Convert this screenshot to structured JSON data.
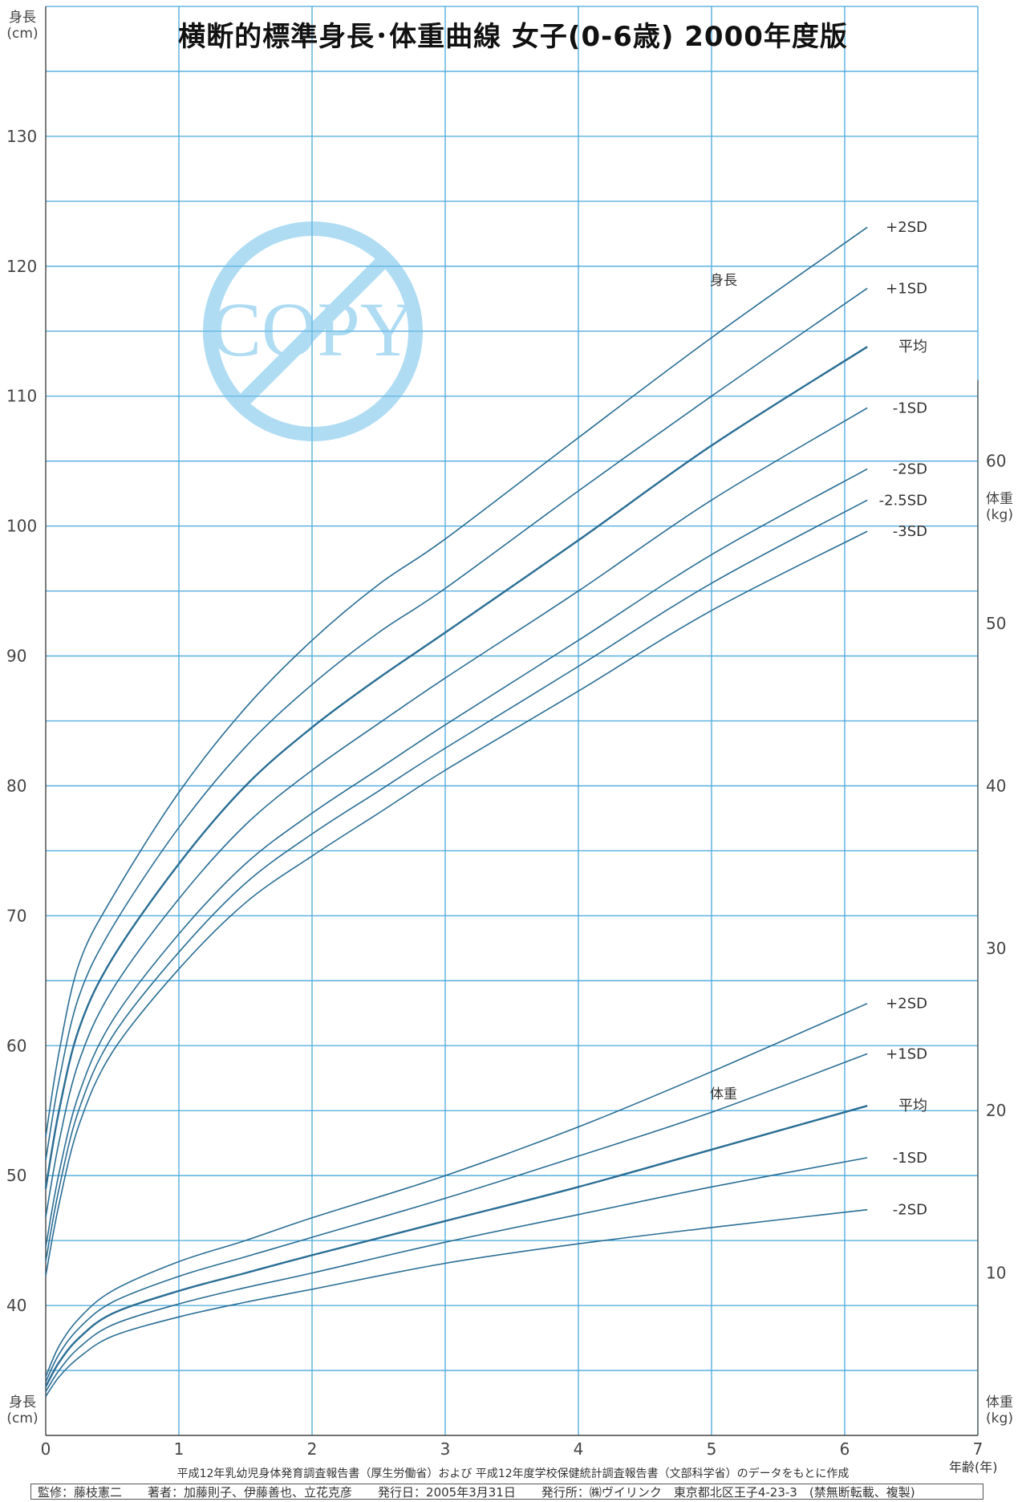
{
  "title": "横断的標準身長･体重曲線 女子(0-6歳) 2000年度版",
  "left_unit": {
    "name": "身長",
    "unit": "(cm)"
  },
  "left_unit_bottom": {
    "name": "身長",
    "unit": "(cm)"
  },
  "right_unit": {
    "name": "体重",
    "unit": "(kg)"
  },
  "right_unit_bottom": {
    "name": "体重",
    "unit": "(kg)"
  },
  "x_axis_label": "年齢(年)",
  "source_note": "平成12年乳幼児身体発育調査報告書（厚生労働省）および 平成12年度学校保健統計調査報告書（文部科学省）のデータをもとに作成",
  "footer": {
    "supervisor": "監修：藤枝憲二",
    "authors": "著者：加藤則子、伊藤善也、立花克彦",
    "date": "発行日：2005年3月31日",
    "publisher": "発行所：㈱ヴイリンク　東京都北区王子4-23-3　(禁無断転載、複製)"
  },
  "watermark": "COPY",
  "colors": {
    "grid": "#4aa8dc",
    "curve": "#2a6d94",
    "axis": "#444444",
    "watermark": "#6fc1ea"
  },
  "chart_data": {
    "type": "line",
    "grid": true,
    "x": {
      "min": 0,
      "max": 7,
      "ticks": [
        0,
        1,
        2,
        3,
        4,
        5,
        6,
        7
      ],
      "label": "年齢(年)"
    },
    "y_left": {
      "min": 30,
      "max": 140,
      "ticks": [
        40,
        50,
        60,
        70,
        80,
        90,
        100,
        110,
        120,
        130
      ],
      "label": "身長 (cm)"
    },
    "y_right": {
      "min": 0,
      "max": 80,
      "ticks": [
        10,
        20,
        30,
        40,
        50,
        60
      ],
      "label": "体重 (kg)"
    },
    "groups": [
      {
        "label": "身長",
        "axis": "left",
        "x": [
          0,
          0.1,
          0.25,
          0.5,
          1,
          1.5,
          2,
          2.5,
          3,
          4,
          5,
          6.17
        ],
        "series": [
          {
            "name": "+2SD",
            "values": [
              53.0,
              59.5,
              66.3,
              71.4,
              79.5,
              86.0,
              91.2,
              95.5,
              99.0,
              106.8,
              114.5,
              123.0
            ]
          },
          {
            "name": "+1SD",
            "values": [
              51.2,
              57.3,
              63.8,
              69.1,
              76.8,
              83.0,
              87.8,
              91.8,
              95.2,
              102.7,
              110.0,
              118.3
            ]
          },
          {
            "name": "平均",
            "values": [
              49.0,
              55.0,
              61.3,
              66.7,
              74.0,
              80.0,
              84.5,
              88.3,
              91.8,
              98.9,
              106.2,
              113.8
            ]
          },
          {
            "name": "-1SD",
            "values": [
              46.8,
              52.6,
              58.8,
              64.3,
              71.3,
              77.0,
              81.2,
              84.8,
              88.3,
              95.0,
              102.0,
              109.1
            ]
          },
          {
            "name": "-2SD",
            "values": [
              44.5,
              50.2,
              56.3,
              61.9,
              68.6,
              74.0,
              77.9,
              81.3,
              84.7,
              91.2,
              97.8,
              104.4
            ]
          },
          {
            "name": "-2.5SD",
            "values": [
              43.4,
              49.0,
              55.1,
              60.7,
              67.2,
              72.5,
              76.3,
              79.6,
              82.9,
              89.2,
              95.6,
              102.0
            ]
          },
          {
            "name": "-3SD",
            "values": [
              42.3,
              47.8,
              53.9,
              59.5,
              65.9,
              71.0,
              74.6,
              77.9,
              81.2,
              87.3,
              93.5,
              99.6
            ]
          }
        ]
      },
      {
        "label": "体重",
        "axis": "right",
        "x": [
          0,
          0.1,
          0.25,
          0.5,
          1,
          1.5,
          2,
          3,
          4,
          5,
          6.17
        ],
        "series": [
          {
            "name": "+2SD",
            "values": [
              3.6,
              5.5,
              7.2,
              8.9,
              10.7,
              12.0,
              13.4,
              16.0,
              19.0,
              22.4,
              26.6
            ]
          },
          {
            "name": "+1SD",
            "values": [
              3.3,
              5.0,
              6.6,
              8.2,
              9.8,
              11.0,
              12.2,
              14.6,
              17.2,
              19.9,
              23.5
            ]
          },
          {
            "name": "平均",
            "values": [
              3.0,
              4.5,
              6.0,
              7.5,
              8.9,
              10.0,
              11.1,
              13.2,
              15.3,
              17.6,
              20.3
            ]
          },
          {
            "name": "-1SD",
            "values": [
              2.7,
              4.0,
              5.4,
              6.8,
              8.1,
              9.1,
              10.0,
              11.9,
              13.6,
              15.3,
              17.1
            ]
          },
          {
            "name": "-2SD",
            "values": [
              2.4,
              3.6,
              4.8,
              6.1,
              7.3,
              8.2,
              9.0,
              10.6,
              11.8,
              12.8,
              13.9
            ]
          }
        ]
      }
    ]
  }
}
